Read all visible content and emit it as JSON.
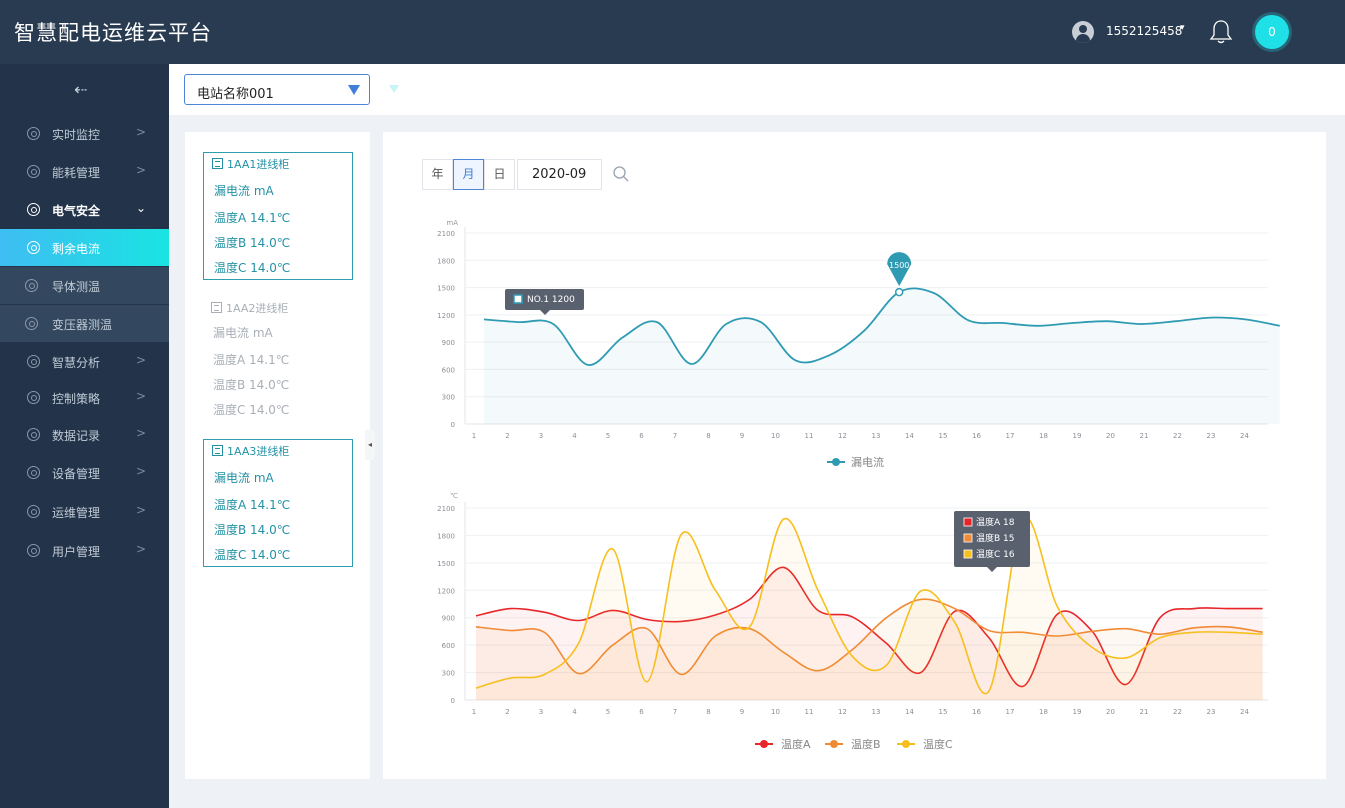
{
  "header": {
    "title": "智慧配电运维云平台",
    "user": "1552125458",
    "user_caret": "▾",
    "notifications": "0"
  },
  "sidebar": {
    "collapse_icon": "⇠",
    "items": [
      {
        "label": "实时监控",
        "arrow": ">"
      },
      {
        "label": "能耗管理",
        "arrow": ">"
      },
      {
        "label": "电气安全",
        "arrow": "⌄"
      },
      {
        "label": "剩余电流"
      },
      {
        "label": "导体测温"
      },
      {
        "label": "变压器测温"
      },
      {
        "label": "智慧分析",
        "arrow": ">"
      },
      {
        "label": "控制策略",
        "arrow": ">"
      },
      {
        "label": "数据记录",
        "arrow": ">"
      },
      {
        "label": "设备管理",
        "arrow": ">"
      },
      {
        "label": "运维管理",
        "arrow": ">"
      },
      {
        "label": "用户管理",
        "arrow": ">"
      }
    ]
  },
  "station_select": {
    "value": "电站名称001"
  },
  "cabinets": [
    {
      "title": "1AA1进线柜",
      "leak": "漏电流   mA",
      "tempA": "温度A   14.1℃",
      "tempB": "温度B   14.0℃",
      "tempC": "温度C   14.0℃"
    },
    {
      "title": "1AA2进线柜",
      "leak": "漏电流   mA",
      "tempA": "温度A   14.1℃",
      "tempB": "温度B   14.0℃",
      "tempC": "温度C   14.0℃"
    },
    {
      "title": "1AA3进线柜",
      "leak": "漏电流   mA",
      "tempA": "温度A   14.1℃",
      "tempB": "温度B   14.0℃",
      "tempC": "温度C   14.0℃"
    }
  ],
  "filters": {
    "year": "年",
    "month": "月",
    "day": "日",
    "date": "2020-09"
  },
  "colors": {
    "leak": "#2f9bb3",
    "tempA": "#e8262a",
    "tempB": "#f18a34",
    "tempC": "#f7bf1e"
  },
  "chart_data": [
    {
      "type": "line",
      "ylabel": "mA",
      "ylim": [
        0,
        2100
      ],
      "yticks": [
        0,
        300,
        600,
        900,
        1200,
        1500,
        1800,
        2100
      ],
      "x": [
        1,
        2,
        3,
        4,
        5,
        6,
        7,
        8,
        9,
        10,
        11,
        12,
        13,
        14,
        15,
        16,
        17,
        18,
        19,
        20,
        21,
        22,
        23,
        24
      ],
      "series": [
        {
          "name": "漏电流",
          "values": [
            1150,
            1120,
            1100,
            650,
            950,
            1120,
            660,
            1100,
            1120,
            700,
            760,
            1030,
            1450,
            1440,
            1140,
            1110,
            1080,
            1110,
            1130,
            1100,
            1130,
            1170,
            1150,
            1080
          ]
        }
      ],
      "tooltip": {
        "label": "NO.1",
        "value": "1200"
      },
      "marker": {
        "label": "1500"
      },
      "grid": true,
      "legend": "bottom"
    },
    {
      "type": "line",
      "ylabel": "℃",
      "ylim": [
        0,
        2100
      ],
      "yticks": [
        0,
        300,
        600,
        900,
        1200,
        1500,
        1800,
        2100
      ],
      "x": [
        1,
        2,
        3,
        4,
        5,
        6,
        7,
        8,
        9,
        10,
        11,
        12,
        13,
        14,
        15,
        16,
        17,
        18,
        19,
        20,
        21,
        22,
        23,
        24
      ],
      "series": [
        {
          "name": "温度A",
          "values": [
            920,
            1000,
            960,
            870,
            980,
            880,
            860,
            930,
            1100,
            1450,
            980,
            910,
            620,
            300,
            970,
            680,
            150,
            940,
            760,
            170,
            900,
            1000,
            1000,
            1000
          ]
        },
        {
          "name": "温度B",
          "values": [
            800,
            760,
            740,
            290,
            600,
            780,
            280,
            700,
            780,
            520,
            320,
            550,
            900,
            1100,
            1000,
            760,
            740,
            700,
            750,
            780,
            720,
            790,
            800,
            740
          ]
        },
        {
          "name": "温度C",
          "values": [
            130,
            240,
            280,
            620,
            1650,
            200,
            1810,
            1200,
            800,
            1980,
            1200,
            480,
            380,
            1190,
            850,
            100,
            1980,
            1020,
            580,
            460,
            680,
            740,
            740,
            720
          ]
        }
      ],
      "tooltip": [
        {
          "name": "温度A",
          "value": "18"
        },
        {
          "name": "温度B",
          "value": "15"
        },
        {
          "name": "温度C",
          "value": "16"
        }
      ],
      "grid": true,
      "legend": "bottom"
    }
  ]
}
